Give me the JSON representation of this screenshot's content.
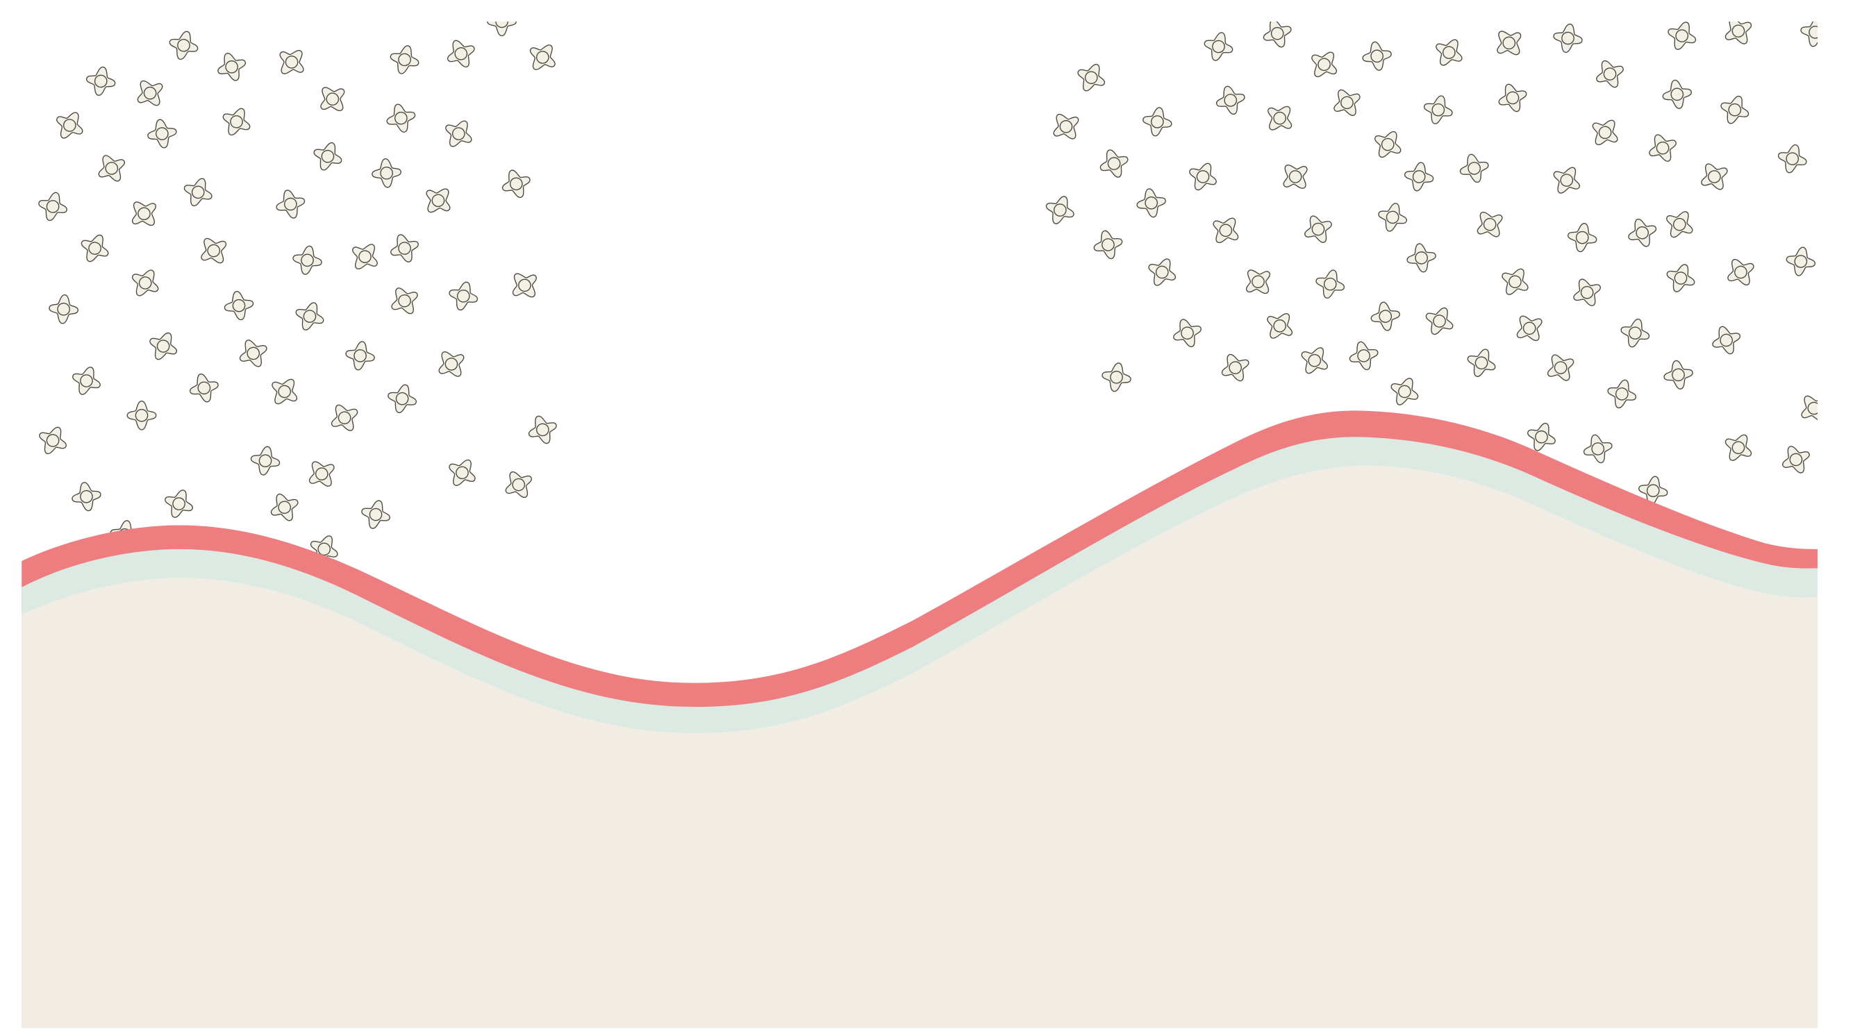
{
  "scene": {
    "background_color": "#ffffff",
    "ground_fill_color": "#f1ede4",
    "band_mint_color": "#dceae3",
    "band_coral_color": "#ee7d80",
    "flower_fill_color": "#f3f1e6",
    "flower_stroke_color": "#4d4a44",
    "icon": "flower-icon"
  }
}
